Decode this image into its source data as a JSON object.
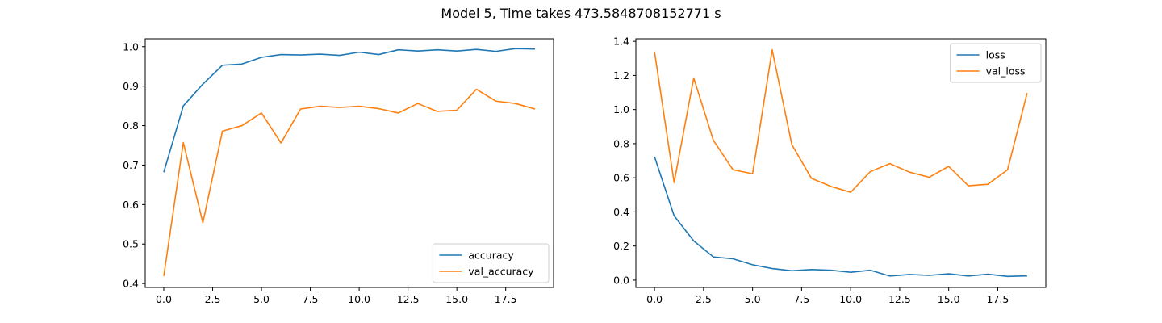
{
  "suptitle": "Model 5, Time takes 473.5848708152771 s",
  "chart_data": [
    {
      "type": "line",
      "x": [
        0,
        1,
        2,
        3,
        4,
        5,
        6,
        7,
        8,
        9,
        10,
        11,
        12,
        13,
        14,
        15,
        16,
        17,
        18,
        19
      ],
      "xlim": [
        -0.95,
        19.95
      ],
      "ylim": [
        0.39,
        1.02
      ],
      "xticks": [
        0.0,
        2.5,
        5.0,
        7.5,
        10.0,
        12.5,
        15.0,
        17.5
      ],
      "xtick_labels": [
        "0.0",
        "2.5",
        "5.0",
        "7.5",
        "10.0",
        "12.5",
        "15.0",
        "17.5"
      ],
      "yticks": [
        0.4,
        0.5,
        0.6,
        0.7,
        0.8,
        0.9,
        1.0
      ],
      "ytick_labels": [
        "0.4",
        "0.5",
        "0.6",
        "0.7",
        "0.8",
        "0.9",
        "1.0"
      ],
      "grid": false,
      "legend_position": "lower-right",
      "series": [
        {
          "name": "accuracy",
          "color": "#1f77b4",
          "values": [
            0.682,
            0.85,
            0.905,
            0.953,
            0.956,
            0.973,
            0.98,
            0.979,
            0.981,
            0.978,
            0.986,
            0.98,
            0.992,
            0.989,
            0.992,
            0.989,
            0.993,
            0.988,
            0.995,
            0.994
          ]
        },
        {
          "name": "val_accuracy",
          "color": "#ff7f0e",
          "values": [
            0.419,
            0.757,
            0.554,
            0.786,
            0.8,
            0.832,
            0.756,
            0.842,
            0.849,
            0.846,
            0.849,
            0.843,
            0.832,
            0.856,
            0.836,
            0.839,
            0.892,
            0.862,
            0.856,
            0.842
          ]
        }
      ]
    },
    {
      "type": "line",
      "x": [
        0,
        1,
        2,
        3,
        4,
        5,
        6,
        7,
        8,
        9,
        10,
        11,
        12,
        13,
        14,
        15,
        16,
        17,
        18,
        19
      ],
      "xlim": [
        -0.95,
        19.95
      ],
      "ylim": [
        -0.043,
        1.415
      ],
      "xticks": [
        0.0,
        2.5,
        5.0,
        7.5,
        10.0,
        12.5,
        15.0,
        17.5
      ],
      "xtick_labels": [
        "0.0",
        "2.5",
        "5.0",
        "7.5",
        "10.0",
        "12.5",
        "15.0",
        "17.5"
      ],
      "yticks": [
        0.0,
        0.2,
        0.4,
        0.6,
        0.8,
        1.0,
        1.2,
        1.4
      ],
      "ytick_labels": [
        "0.0",
        "0.2",
        "0.4",
        "0.6",
        "0.8",
        "1.0",
        "1.2",
        "1.4"
      ],
      "grid": false,
      "legend_position": "upper-right",
      "series": [
        {
          "name": "loss",
          "color": "#1f77b4",
          "values": [
            0.724,
            0.377,
            0.23,
            0.136,
            0.125,
            0.09,
            0.068,
            0.055,
            0.062,
            0.058,
            0.046,
            0.058,
            0.024,
            0.033,
            0.028,
            0.037,
            0.024,
            0.035,
            0.022,
            0.025
          ]
        },
        {
          "name": "val_loss",
          "color": "#ff7f0e",
          "values": [
            1.34,
            0.572,
            1.185,
            0.82,
            0.647,
            0.624,
            1.35,
            0.795,
            0.597,
            0.549,
            0.515,
            0.636,
            0.683,
            0.633,
            0.603,
            0.667,
            0.553,
            0.562,
            0.647,
            1.097
          ]
        }
      ]
    }
  ]
}
